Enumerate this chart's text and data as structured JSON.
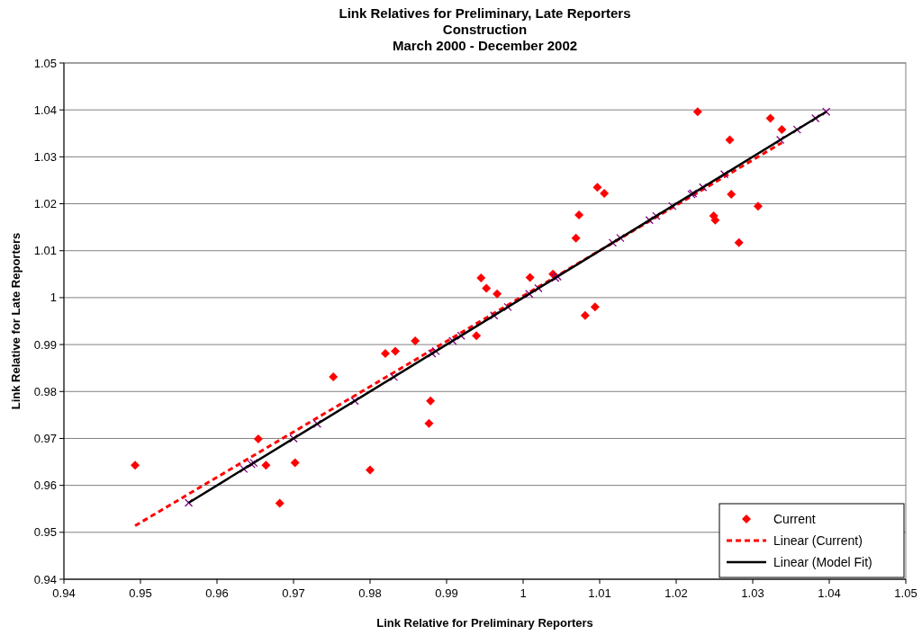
{
  "chart_data": {
    "type": "scatter",
    "title": "Link Relatives for Preliminary, Late Reporters\nConstruction\nMarch 2000 - December 2002",
    "xlabel": "Link Relative for Preliminary Reporters",
    "ylabel": "Link Relative for Late Reporters",
    "xlim": [
      0.94,
      1.05
    ],
    "ylim": [
      0.94,
      1.05
    ],
    "xticks": [
      0.94,
      0.95,
      0.96,
      0.97,
      0.98,
      0.99,
      1,
      1.01,
      1.02,
      1.03,
      1.04,
      1.05
    ],
    "yticks": [
      0.94,
      0.95,
      0.96,
      0.97,
      0.98,
      0.99,
      1,
      1.01,
      1.02,
      1.03,
      1.04,
      1.05
    ],
    "grid": "y",
    "legend": "bottom right",
    "series": [
      {
        "name": "Current",
        "marker": "diamond",
        "color": "#ff0000",
        "x": [
          0.9493,
          0.9654,
          0.9664,
          0.9682,
          0.9702,
          0.9752,
          0.98,
          0.982,
          0.9833,
          0.9859,
          0.9879,
          0.9877,
          0.9939,
          0.9945,
          0.9952,
          0.9966,
          1.0009,
          1.0039,
          1.0081,
          1.0094,
          1.0069,
          1.0073,
          1.0097,
          1.0106,
          1.0228,
          1.027,
          1.0272,
          1.0249,
          1.0251,
          1.0282,
          1.0307,
          1.0323,
          1.0338
        ],
        "values": [
          0.9643,
          0.9699,
          0.9643,
          0.9562,
          0.9648,
          0.9831,
          0.9633,
          0.9881,
          0.9886,
          0.9908,
          0.978,
          0.9732,
          0.9919,
          1.0042,
          1.002,
          1.0008,
          1.0043,
          1.005,
          0.9962,
          0.998,
          1.0127,
          1.0176,
          1.0235,
          1.0222,
          1.0396,
          1.0336,
          1.022,
          1.0174,
          1.0165,
          1.0117,
          1.0195,
          1.0382,
          1.0358
        ]
      },
      {
        "name": "Linear (Current)",
        "type": "line",
        "marker": "none",
        "line_style": "dashed",
        "color": "#ff0000",
        "x": [
          0.9493,
          1.0338
        ],
        "values": [
          0.9514,
          1.033
        ]
      },
      {
        "marker": "cross",
        "color": "#800080",
        "x": [
          0.9563,
          0.9635,
          0.9645,
          0.9648,
          0.97,
          0.9731,
          0.978,
          0.9831,
          0.9881,
          0.9886,
          0.9908,
          0.9919,
          0.9962,
          0.998,
          1.0008,
          1.002,
          1.0042,
          1.0045,
          1.0117,
          1.0127,
          1.0165,
          1.0174,
          1.0195,
          1.022,
          1.0222,
          1.0235,
          1.0263,
          1.0336,
          1.0358,
          1.0382,
          1.0396
        ],
        "values": [
          0.9563,
          0.9635,
          0.9645,
          0.9648,
          0.97,
          0.9731,
          0.978,
          0.9831,
          0.9881,
          0.9886,
          0.9908,
          0.9919,
          0.9962,
          0.998,
          1.0008,
          1.002,
          1.0042,
          1.0045,
          1.0117,
          1.0127,
          1.0165,
          1.0174,
          1.0195,
          1.022,
          1.0222,
          1.0235,
          1.0263,
          1.0336,
          1.0358,
          1.0382,
          1.0396
        ]
      },
      {
        "name": "Linear (Model Fit)",
        "type": "line",
        "marker": "none",
        "line_style": "solid",
        "color": "#000000",
        "x": [
          0.9563,
          1.0396
        ],
        "values": [
          0.9563,
          1.0396
        ]
      }
    ]
  }
}
